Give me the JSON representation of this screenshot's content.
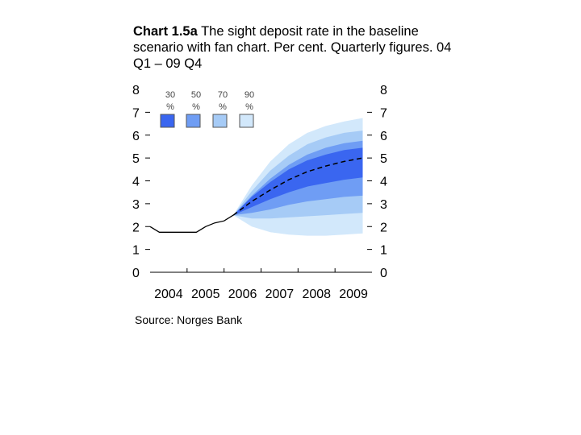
{
  "title_bold": "Chart 1.5a",
  "title_rest": " The sight deposit rate in the baseline scenario with fan chart. Per cent. Quarterly figures. 04 Q1 – 09 Q4",
  "source": "Source: Norges Bank",
  "colors": {
    "band_30": "#3a66f0",
    "band_50": "#6f9df4",
    "band_70": "#a6cbf6",
    "band_90": "#d2e8fb",
    "history": "#000000",
    "projection": "#000000"
  },
  "chart_data": {
    "type": "area",
    "title": "Chart 1.5a The sight deposit rate in the baseline scenario with fan chart. Per cent. Quarterly figures. 04 Q1 – 09 Q4",
    "xlabel": "",
    "ylabel": "",
    "x_ticks": [
      "2004",
      "2005",
      "2006",
      "2007",
      "2008",
      "2009"
    ],
    "xlim": [
      2004.0,
      2010.0
    ],
    "ylim": [
      0,
      8
    ],
    "y_ticks": [
      0,
      1,
      2,
      3,
      4,
      5,
      6,
      7,
      8
    ],
    "grid": false,
    "legend": {
      "placement": "top-left",
      "entries": [
        {
          "pct": "30",
          "unit": "%",
          "color_key": "band_30"
        },
        {
          "pct": "50",
          "unit": "%",
          "color_key": "band_50"
        },
        {
          "pct": "70",
          "unit": "%",
          "color_key": "band_70"
        },
        {
          "pct": "90",
          "unit": "%",
          "color_key": "band_90"
        }
      ]
    },
    "history": {
      "x": [
        2004.0,
        2004.25,
        2004.5,
        2004.75,
        2005.0,
        2005.25,
        2005.5,
        2005.75,
        2006.0,
        2006.25
      ],
      "y": [
        2.0,
        1.75,
        1.75,
        1.75,
        1.75,
        1.75,
        2.0,
        2.16,
        2.25,
        2.5
      ]
    },
    "projection": {
      "x": [
        2006.25,
        2006.75,
        2007.25,
        2007.75,
        2008.25,
        2008.75,
        2009.25,
        2009.75
      ],
      "median": [
        2.5,
        3.1,
        3.6,
        4.05,
        4.4,
        4.65,
        4.85,
        5.0
      ],
      "bands": [
        {
          "coverage": "90",
          "low": [
            2.5,
            2.0,
            1.75,
            1.65,
            1.6,
            1.6,
            1.65,
            1.7
          ],
          "high": [
            2.5,
            3.8,
            4.85,
            5.6,
            6.1,
            6.4,
            6.6,
            6.75
          ]
        },
        {
          "coverage": "70",
          "low": [
            2.5,
            2.35,
            2.35,
            2.4,
            2.45,
            2.5,
            2.55,
            2.6
          ],
          "high": [
            2.5,
            3.55,
            4.45,
            5.1,
            5.6,
            5.9,
            6.1,
            6.2
          ]
        },
        {
          "coverage": "50",
          "low": [
            2.5,
            2.6,
            2.75,
            2.95,
            3.1,
            3.2,
            3.3,
            3.35
          ],
          "high": [
            2.5,
            3.35,
            4.1,
            4.7,
            5.15,
            5.45,
            5.65,
            5.75
          ]
        },
        {
          "coverage": "30",
          "low": [
            2.5,
            2.85,
            3.2,
            3.5,
            3.75,
            3.9,
            4.05,
            4.15
          ],
          "high": [
            2.5,
            3.3,
            3.95,
            4.5,
            4.9,
            5.15,
            5.35,
            5.45
          ]
        }
      ]
    }
  }
}
